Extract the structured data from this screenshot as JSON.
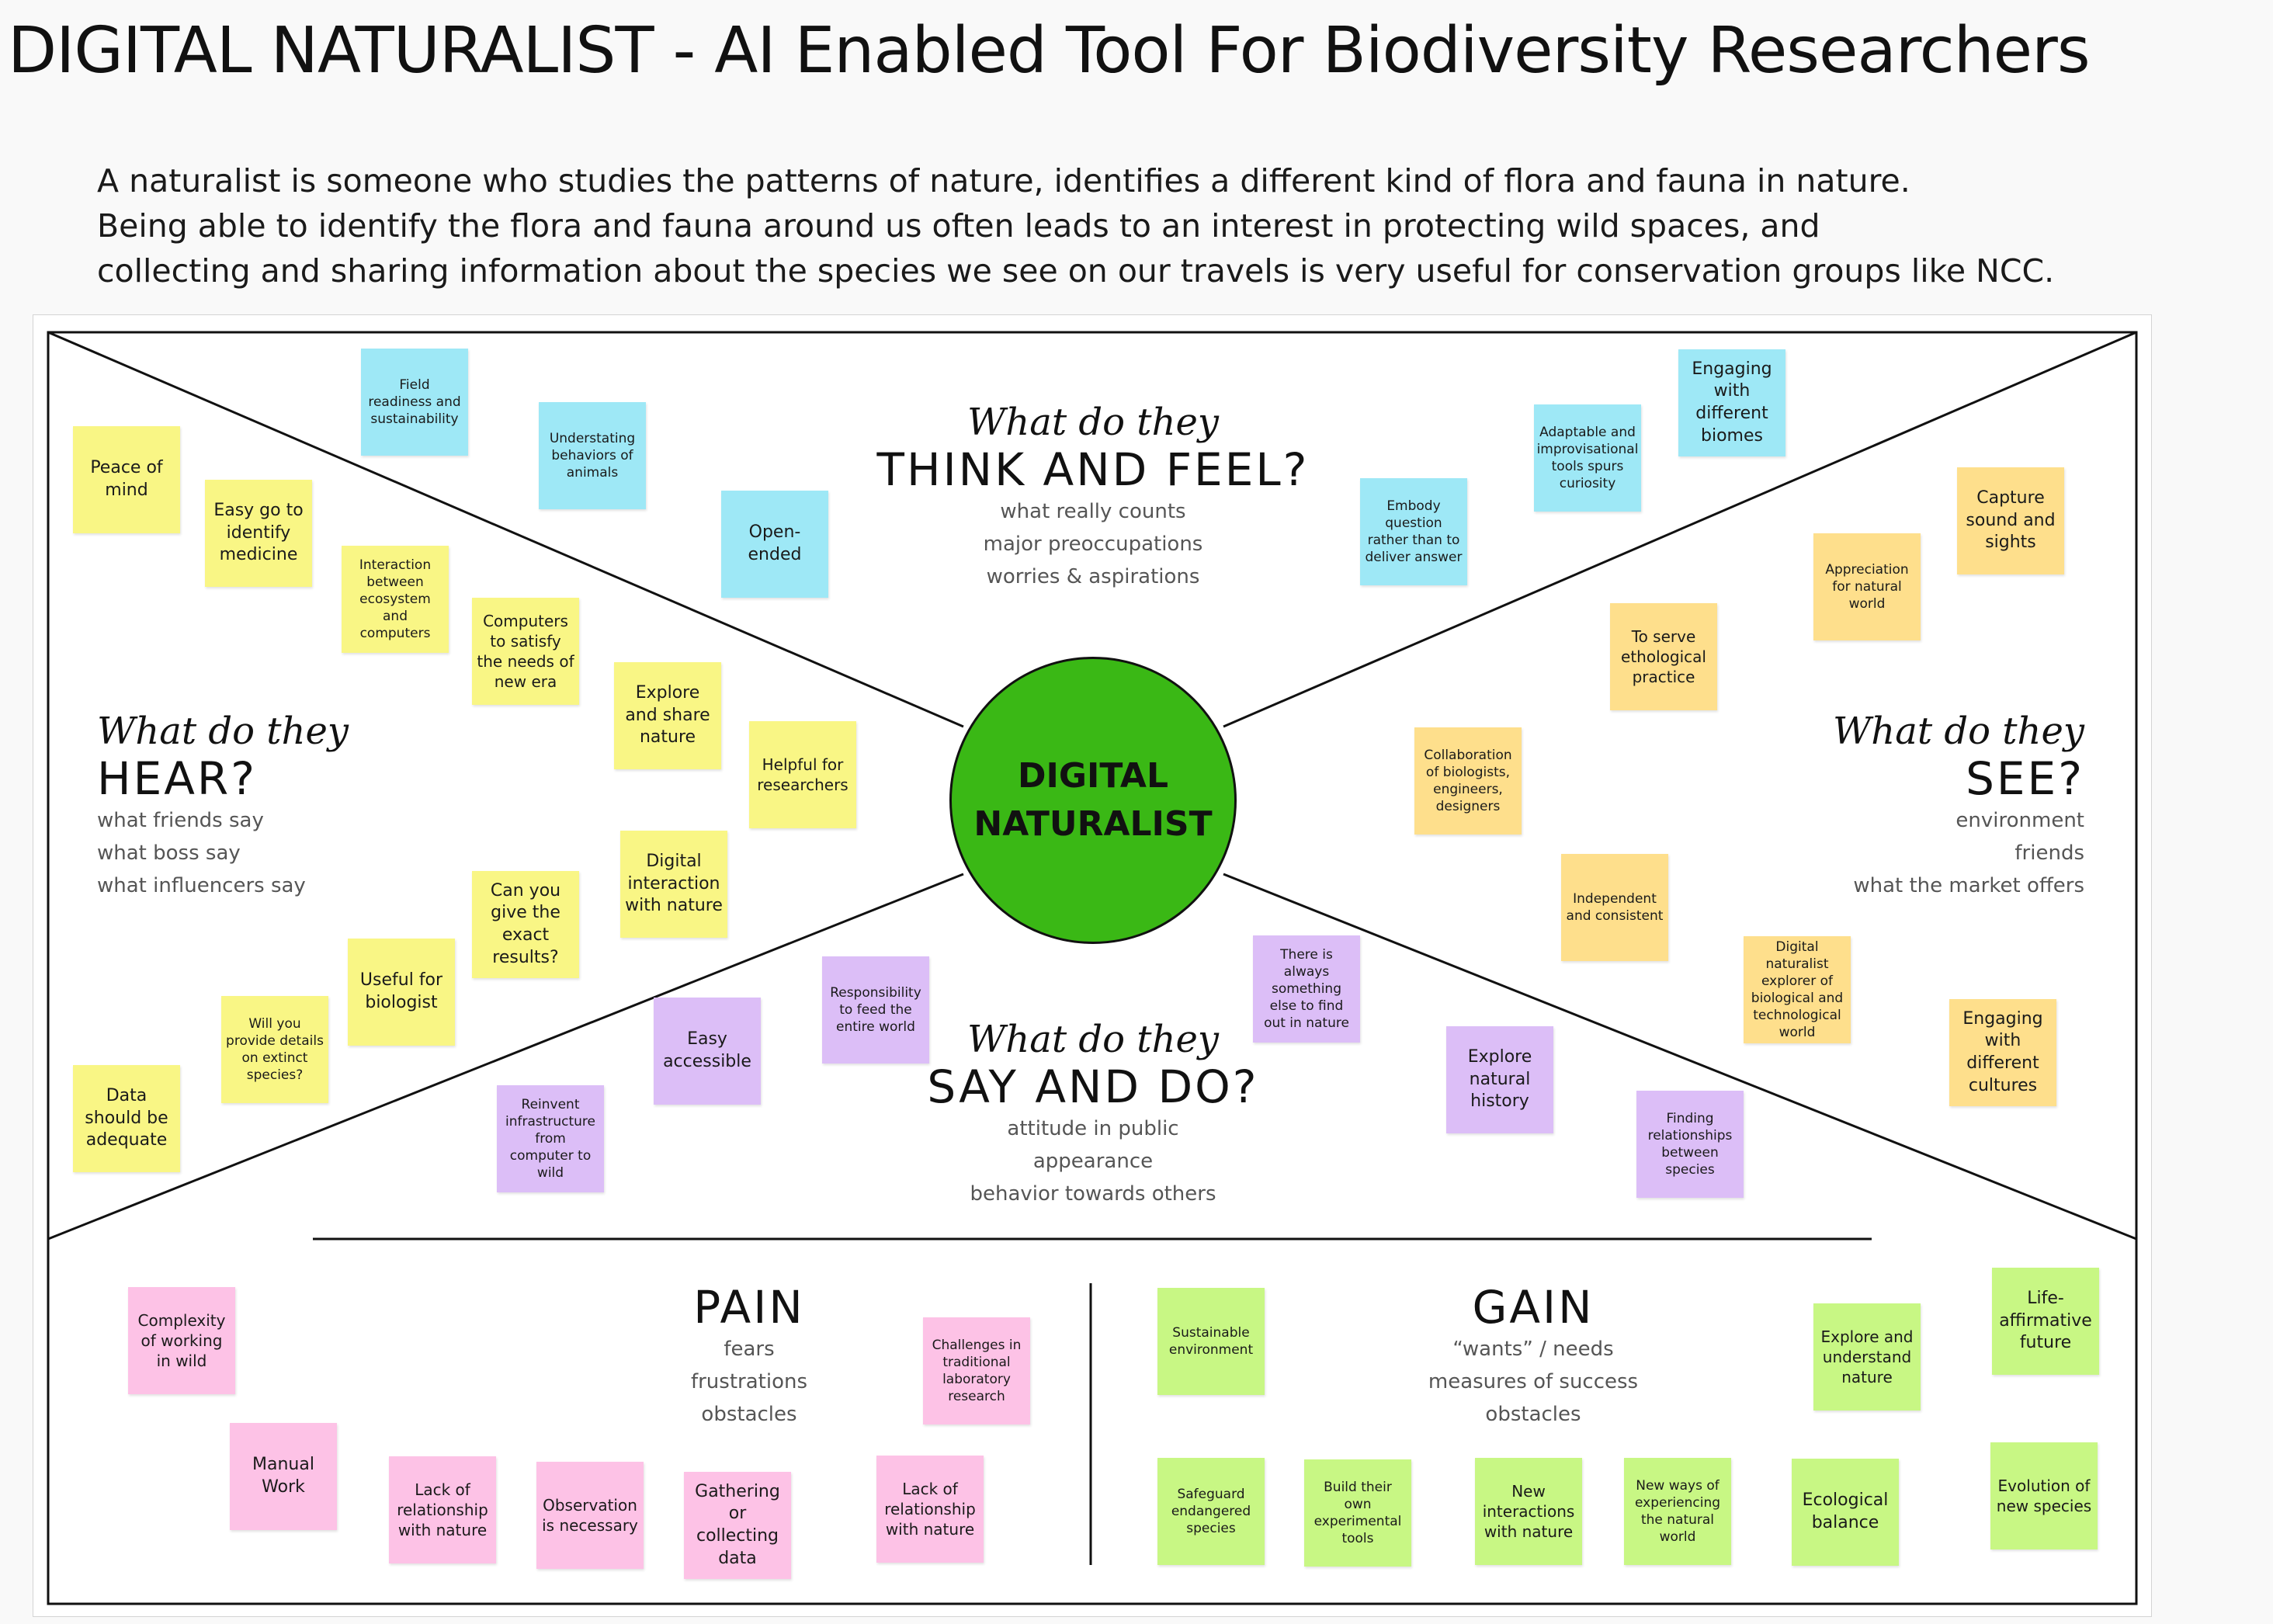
{
  "title": "DIGITAL NATURALIST - AI Enabled Tool For Biodiversity Researchers",
  "intro": [
    "A naturalist is someone who studies the patterns of nature, identifies a different kind of flora and fauna in nature.",
    "Being able to identify the flora and fauna around us often leads to an interest in protecting wild spaces, and",
    "collecting and sharing information about the species we see on our travels is very useful for conservation groups like NCC."
  ],
  "center": {
    "line1": "DIGITAL",
    "line2": "NATURALIST"
  },
  "colors": {
    "blue": "#9ee8f6",
    "yellow": "#f9f685",
    "orange": "#fedf8c",
    "purple": "#dcbef7",
    "pink": "#fdc2e6",
    "green": "#c8f784",
    "center": "#3ab815"
  },
  "quadrants": {
    "think": {
      "script": "What do they",
      "title": "THINK AND FEEL?",
      "subs": [
        "what really counts",
        "major preoccupations",
        "worries & aspirations"
      ]
    },
    "hear": {
      "script": "What do they",
      "title": "HEAR?",
      "subs": [
        "what friends say",
        "what boss say",
        "what influencers say"
      ]
    },
    "see": {
      "script": "What do they",
      "title": "SEE?",
      "subs": [
        "environment",
        "friends",
        "what the market offers"
      ]
    },
    "say": {
      "script": "What do they",
      "title": "SAY AND DO?",
      "subs": [
        "attitude in public",
        "appearance",
        "behavior towards others"
      ]
    },
    "pain": {
      "title": "PAIN",
      "subs": [
        "fears",
        "frustrations",
        "obstacles"
      ]
    },
    "gain": {
      "title": "GAIN",
      "subs": [
        "“wants” / needs",
        "measures of success",
        "obstacles"
      ]
    }
  },
  "notes": {
    "think": [
      "Field readiness and sustainability",
      "Understating behaviors of animals",
      "Open-ended",
      "Embody question rather than to deliver answer",
      "Adaptable and improvisational tools spurs curiosity",
      "Engaging with different biomes"
    ],
    "hear": [
      "Peace of mind",
      "Easy go to identify medicine",
      "Interaction between ecosystem and computers",
      "Computers to satisfy the needs of new era",
      "Explore and share nature",
      "Helpful for researchers",
      "Digital interaction with nature",
      "Can you give the exact results?",
      "Useful for biologist",
      "Will you provide details on extinct species?",
      "Data should be adequate"
    ],
    "see": [
      "Capture sound and sights",
      "Appreciation for natural world",
      "To serve ethological practice",
      "Collaboration of biologists, engineers, designers",
      "Independent and consistent",
      "Digital naturalist explorer of biological and technological world",
      "Engaging with different cultures"
    ],
    "say": [
      "Responsibility to feed the entire world",
      "Easy accessible",
      "Reinvent infrastructure from computer to wild",
      "There is always something else to find out in nature",
      "Explore natural history",
      "Finding relationships between species"
    ],
    "pain": [
      "Complexity of working in wild",
      "Manual Work",
      "Lack of relationship with nature",
      "Observation is necessary",
      "Gathering or collecting data",
      "Lack of relationship with nature",
      "Challenges in traditional laboratory research"
    ],
    "gain": [
      "Sustainable environment",
      "Explore and understand nature",
      "Life-affirmative future",
      "Safeguard endangered species",
      "Build their own experimental tools",
      "New interactions with nature",
      "New ways of experiencing the natural world",
      "Ecological balance",
      "Evolution of new species"
    ]
  }
}
